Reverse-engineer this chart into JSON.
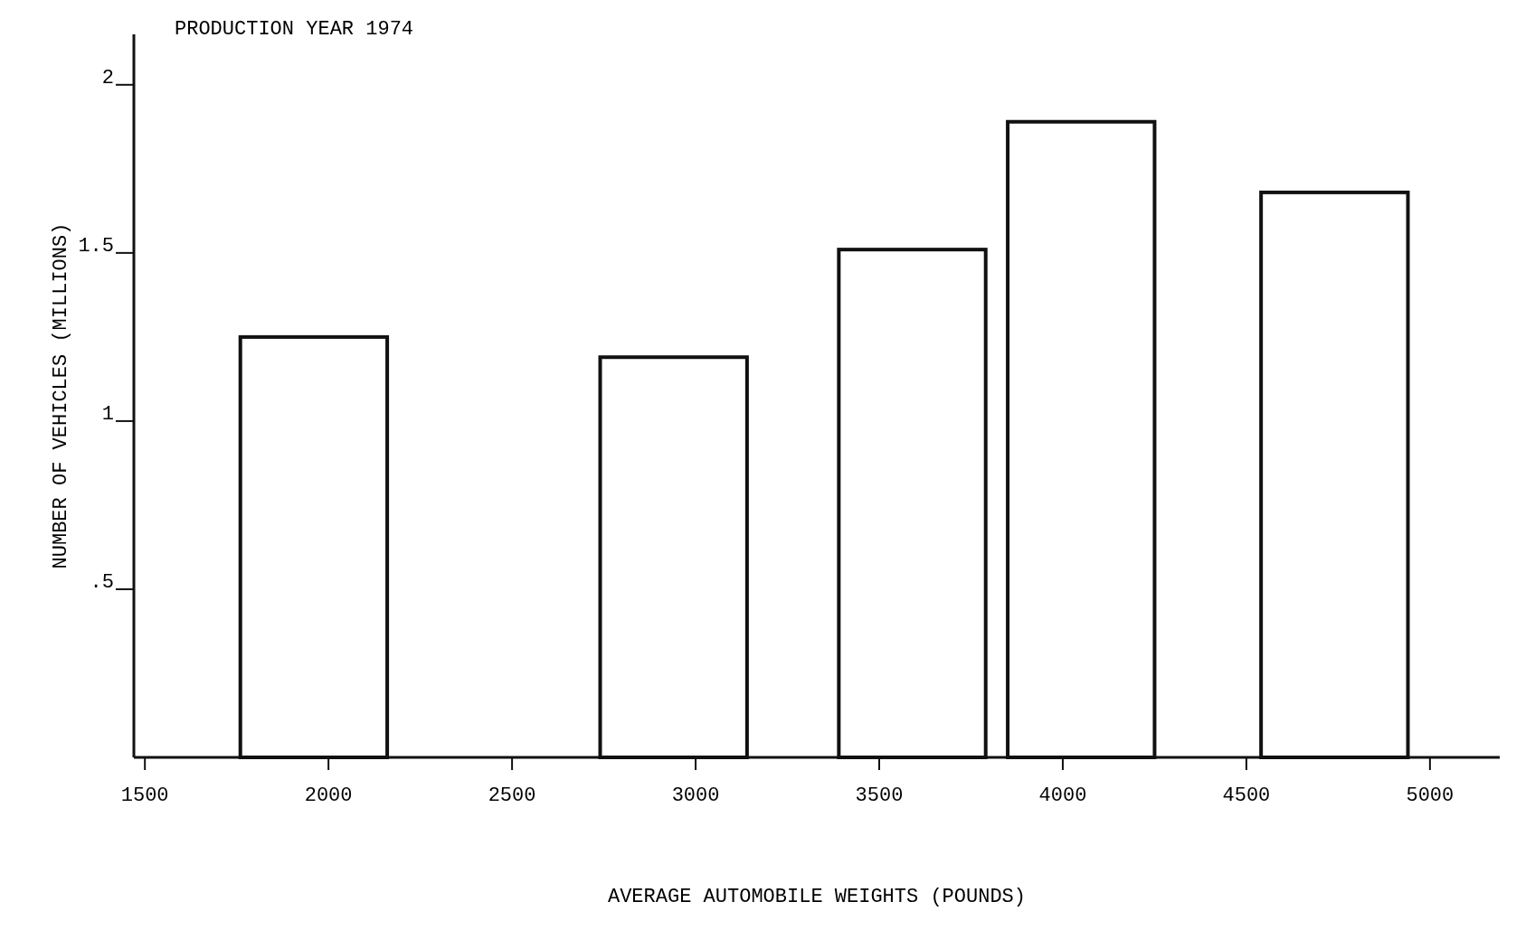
{
  "chart_data": {
    "type": "bar",
    "title": "PRODUCTION YEAR 1974",
    "xlabel": "AVERAGE AUTOMOBILE WEIGHTS (POUNDS)",
    "ylabel": "NUMBER OF VEHICLES (MILLIONS)",
    "x": [
      1960,
      2940,
      3590,
      4050,
      4740
    ],
    "values": [
      1.25,
      1.19,
      1.51,
      1.89,
      1.68
    ],
    "color": "#ffffff",
    "xlim": [
      1470,
      5190
    ],
    "xticks": [
      1500,
      2000,
      2500,
      3000,
      3500,
      4000,
      4500,
      5000
    ],
    "ylim": [
      0,
      2.15
    ],
    "yticks": [
      {
        "value": 0.5,
        "label": ".5"
      },
      1,
      1.5,
      2
    ],
    "grid": false
  }
}
